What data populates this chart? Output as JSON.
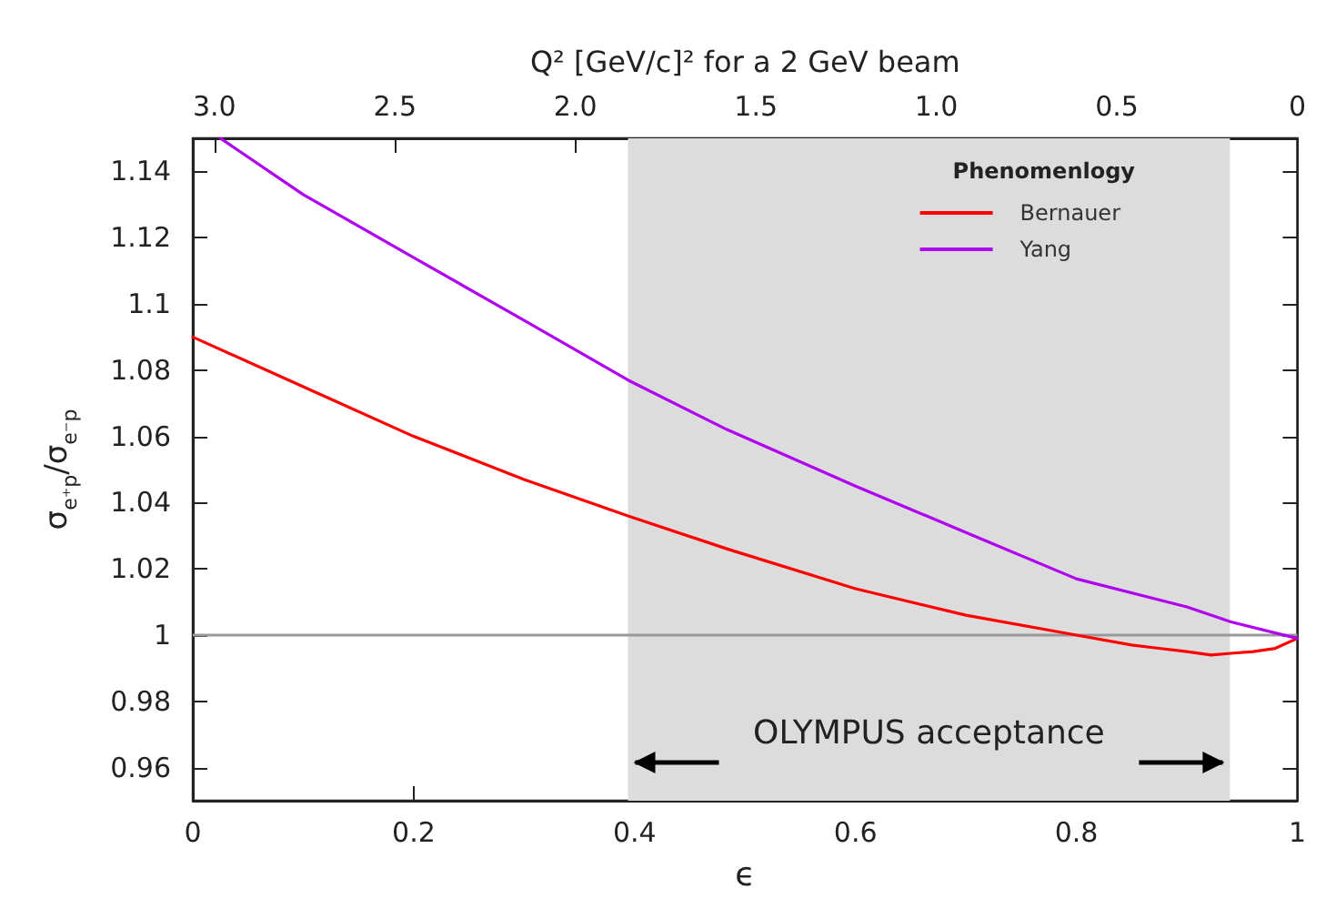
{
  "chart_data": {
    "type": "line",
    "x2label": "Q² [GeV/c]² for a 2 GeV beam",
    "xlabel": "ϵ",
    "ylabel": "σ$_{e⁺p}$/σ$_{e⁻p}$",
    "legend_title": "Phenomenlogy",
    "x": [
      0,
      0.1,
      0.2,
      0.3,
      0.394,
      0.484,
      0.6,
      0.7,
      0.8,
      0.85,
      0.9,
      0.922,
      0.94,
      0.96,
      0.98,
      1.0
    ],
    "series": [
      {
        "name": "Bernauer",
        "color": "#ff0000",
        "values": [
          1.09,
          1.075,
          1.06,
          1.047,
          1.036,
          1.026,
          1.014,
          1.006,
          1.0,
          0.997,
          0.995,
          0.994,
          0.9945,
          0.995,
          0.996,
          0.999
        ]
      },
      {
        "name": "Yang",
        "color": "#b000f0",
        "x": [
          0.025,
          0.1,
          0.2,
          0.3,
          0.394,
          0.484,
          0.6,
          0.7,
          0.8,
          0.9,
          0.94,
          1.0
        ],
        "values": [
          1.15,
          1.133,
          1.114,
          1.095,
          1.077,
          1.062,
          1.045,
          1.031,
          1.017,
          1.0085,
          1.004,
          0.999
        ]
      }
    ],
    "xlim": [
      0,
      1
    ],
    "xticks": [
      0,
      0.2,
      0.4,
      0.6,
      0.8,
      1
    ],
    "ylim": [
      0.95,
      1.15
    ],
    "yticks": [
      0.96,
      0.98,
      1,
      1.02,
      1.04,
      1.06,
      1.08,
      1.1,
      1.12,
      1.14
    ],
    "x2lim": [
      3.06,
      0
    ],
    "x2ticks": [
      {
        "value": 3,
        "label": "3.0"
      },
      {
        "value": 2.5,
        "label": "2.5"
      },
      {
        "value": 2,
        "label": "2.0"
      },
      {
        "value": 1.5,
        "label": "1.5"
      },
      {
        "value": 1,
        "label": "1.0"
      },
      {
        "value": 0.5,
        "label": "0.5"
      },
      0
    ],
    "ref_lines": [
      {
        "axis": "y",
        "value": 1,
        "label": null,
        "color": "#999999"
      }
    ],
    "bands": [
      {
        "axis": "x",
        "from": 0.394,
        "to": 0.939,
        "label": "OLYMPUS acceptance",
        "color": "#dcdcdc"
      }
    ],
    "grid": false,
    "legend": "top right",
    "line_style": "solid",
    "marker": "none"
  }
}
